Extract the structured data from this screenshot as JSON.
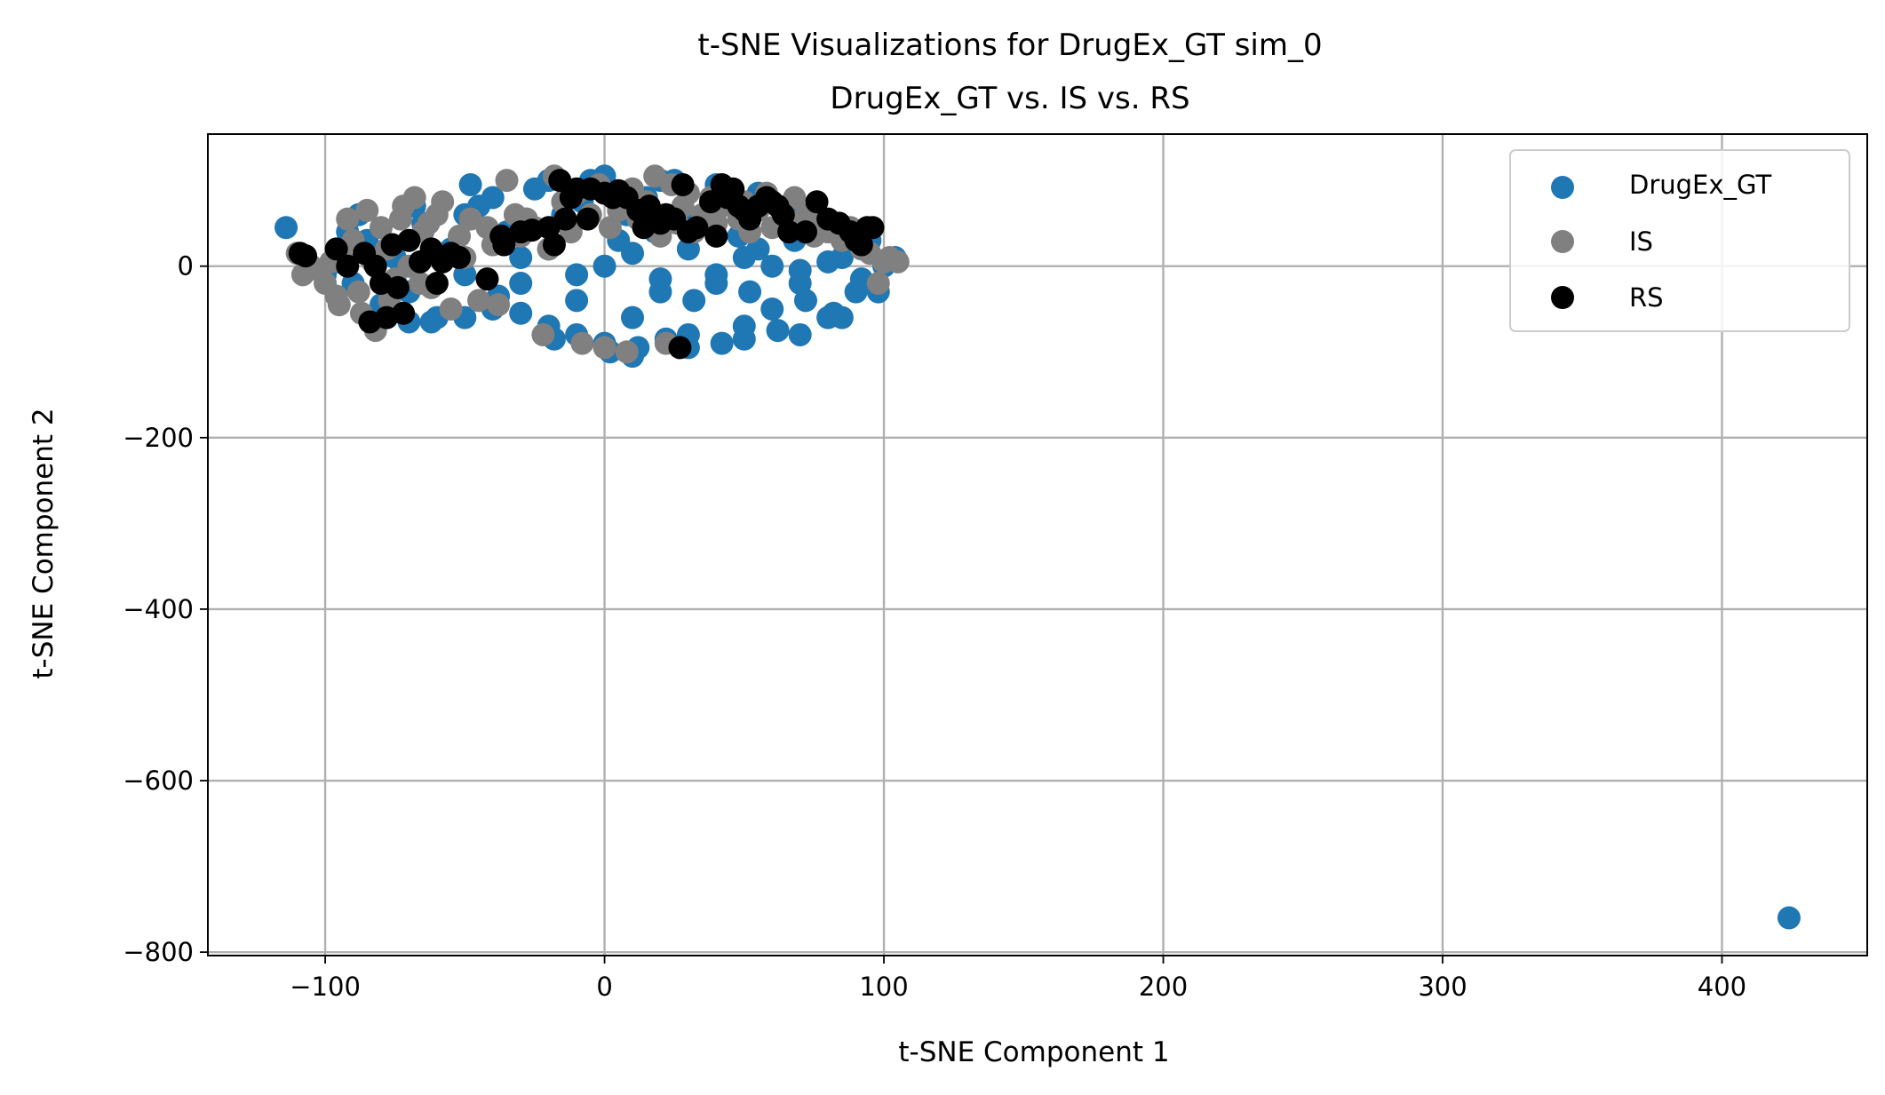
{
  "chart_data": {
    "type": "scatter",
    "title": "t-SNE Visualizations for DrugEx_GT sim_0",
    "subtitle": "DrugEx_GT vs. IS vs. RS",
    "xlabel": "t-SNE Component 1",
    "ylabel": "t-SNE Component 2",
    "xlim": [
      -142,
      452
    ],
    "ylim": [
      -804,
      154
    ],
    "xticks": [
      -100,
      0,
      100,
      200,
      300,
      400
    ],
    "xtick_labels": [
      "−100",
      "0",
      "100",
      "200",
      "300",
      "400"
    ],
    "yticks": [
      0,
      -200,
      -400,
      -600,
      -800
    ],
    "ytick_labels": [
      "0",
      "−200",
      "−400",
      "−600",
      "−800"
    ],
    "grid": true,
    "legend_position": "top-right",
    "series": [
      {
        "name": "DrugEx_GT",
        "color": "#1f77b4",
        "points": [
          [
            -114,
            45
          ],
          [
            424,
            -760
          ],
          [
            -95,
            5
          ],
          [
            -90,
            -20
          ],
          [
            -85,
            30
          ],
          [
            -80,
            -45
          ],
          [
            -75,
            10
          ],
          [
            -70,
            -30
          ],
          [
            -65,
            50
          ],
          [
            -60,
            -60
          ],
          [
            -55,
            20
          ],
          [
            -50,
            -10
          ],
          [
            -45,
            70
          ],
          [
            -40,
            -50
          ],
          [
            -35,
            40
          ],
          [
            -30,
            -20
          ],
          [
            -25,
            90
          ],
          [
            -20,
            -70
          ],
          [
            -15,
            60
          ],
          [
            -10,
            -40
          ],
          [
            -5,
            100
          ],
          [
            0,
            -90
          ],
          [
            5,
            30
          ],
          [
            10,
            -60
          ],
          [
            15,
            80
          ],
          [
            20,
            -30
          ],
          [
            25,
            100
          ],
          [
            30,
            -80
          ],
          [
            35,
            50
          ],
          [
            40,
            -10
          ],
          [
            45,
            90
          ],
          [
            50,
            -70
          ],
          [
            55,
            20
          ],
          [
            60,
            -50
          ],
          [
            65,
            70
          ],
          [
            70,
            -20
          ],
          [
            75,
            40
          ],
          [
            80,
            -60
          ],
          [
            85,
            10
          ],
          [
            90,
            -30
          ],
          [
            95,
            30
          ],
          [
            98,
            -30
          ],
          [
            100,
            0
          ],
          [
            104,
            10
          ],
          [
            -100,
            -10
          ],
          [
            -92,
            40
          ],
          [
            -88,
            60
          ],
          [
            -78,
            -60
          ],
          [
            -68,
            70
          ],
          [
            -62,
            -65
          ],
          [
            -48,
            95
          ],
          [
            -38,
            -35
          ],
          [
            -28,
            55
          ],
          [
            -18,
            -85
          ],
          [
            -8,
            75
          ],
          [
            2,
            -100
          ],
          [
            8,
            60
          ],
          [
            12,
            -95
          ],
          [
            18,
            40
          ],
          [
            22,
            -85
          ],
          [
            28,
            60
          ],
          [
            32,
            -40
          ],
          [
            38,
            75
          ],
          [
            42,
            -90
          ],
          [
            48,
            35
          ],
          [
            52,
            -30
          ],
          [
            58,
            80
          ],
          [
            62,
            -75
          ],
          [
            68,
            30
          ],
          [
            72,
            -40
          ],
          [
            78,
            55
          ],
          [
            82,
            -55
          ],
          [
            88,
            25
          ],
          [
            92,
            -15
          ],
          [
            -30,
            10
          ],
          [
            -20,
            20
          ],
          [
            -10,
            -10
          ],
          [
            0,
            0
          ],
          [
            10,
            15
          ],
          [
            20,
            -15
          ],
          [
            30,
            20
          ],
          [
            40,
            -20
          ],
          [
            50,
            10
          ],
          [
            60,
            0
          ],
          [
            70,
            -5
          ],
          [
            80,
            5
          ],
          [
            -50,
            60
          ],
          [
            -40,
            80
          ],
          [
            -20,
            100
          ],
          [
            0,
            105
          ],
          [
            20,
            100
          ],
          [
            40,
            95
          ],
          [
            55,
            85
          ],
          [
            -70,
            -65
          ],
          [
            -50,
            -60
          ],
          [
            -30,
            -55
          ],
          [
            -10,
            -80
          ],
          [
            10,
            -105
          ],
          [
            30,
            -95
          ],
          [
            50,
            -85
          ],
          [
            70,
            -80
          ],
          [
            85,
            -60
          ]
        ]
      },
      {
        "name": "IS",
        "color": "#808080",
        "points": [
          [
            -110,
            15
          ],
          [
            -108,
            -10
          ],
          [
            -100,
            -20
          ],
          [
            -98,
            5
          ],
          [
            -95,
            -45
          ],
          [
            -92,
            55
          ],
          [
            -90,
            30
          ],
          [
            -88,
            -30
          ],
          [
            -85,
            65
          ],
          [
            -82,
            -75
          ],
          [
            -80,
            45
          ],
          [
            -78,
            20
          ],
          [
            -75,
            -15
          ],
          [
            -72,
            70
          ],
          [
            -70,
            0
          ],
          [
            -68,
            80
          ],
          [
            -65,
            40
          ],
          [
            -62,
            -25
          ],
          [
            -60,
            60
          ],
          [
            -58,
            75
          ],
          [
            -55,
            -50
          ],
          [
            -52,
            35
          ],
          [
            -50,
            10
          ],
          [
            -48,
            55
          ],
          [
            -45,
            -40
          ],
          [
            -42,
            45
          ],
          [
            -40,
            25
          ],
          [
            -38,
            -45
          ],
          [
            -35,
            100
          ],
          [
            -32,
            60
          ],
          [
            -30,
            35
          ],
          [
            -28,
            55
          ],
          [
            -25,
            45
          ],
          [
            -22,
            -80
          ],
          [
            -20,
            20
          ],
          [
            -18,
            105
          ],
          [
            -15,
            75
          ],
          [
            -12,
            40
          ],
          [
            -10,
            85
          ],
          [
            -8,
            -90
          ],
          [
            -5,
            60
          ],
          [
            -2,
            95
          ],
          [
            0,
            -95
          ],
          [
            2,
            45
          ],
          [
            5,
            65
          ],
          [
            8,
            -100
          ],
          [
            10,
            90
          ],
          [
            12,
            55
          ],
          [
            15,
            75
          ],
          [
            18,
            105
          ],
          [
            20,
            35
          ],
          [
            22,
            -90
          ],
          [
            24,
            95
          ],
          [
            26,
            50
          ],
          [
            28,
            70
          ],
          [
            30,
            85
          ],
          [
            32,
            40
          ],
          [
            35,
            60
          ],
          [
            38,
            80
          ],
          [
            40,
            50
          ],
          [
            42,
            70
          ],
          [
            45,
            90
          ],
          [
            48,
            55
          ],
          [
            50,
            75
          ],
          [
            52,
            40
          ],
          [
            55,
            65
          ],
          [
            58,
            85
          ],
          [
            60,
            45
          ],
          [
            62,
            70
          ],
          [
            65,
            55
          ],
          [
            68,
            80
          ],
          [
            70,
            45
          ],
          [
            72,
            60
          ],
          [
            75,
            35
          ],
          [
            78,
            55
          ],
          [
            80,
            40
          ],
          [
            82,
            50
          ],
          [
            85,
            30
          ],
          [
            88,
            45
          ],
          [
            90,
            35
          ],
          [
            92,
            20
          ],
          [
            95,
            15
          ],
          [
            98,
            -20
          ],
          [
            100,
            5
          ],
          [
            102,
            10
          ],
          [
            105,
            5
          ],
          [
            -105,
            0
          ],
          [
            -102,
            -5
          ],
          [
            -96,
            -35
          ],
          [
            -94,
            10
          ],
          [
            -87,
            -55
          ],
          [
            -83,
            5
          ],
          [
            -77,
            -40
          ],
          [
            -73,
            55
          ],
          [
            -66,
            -20
          ],
          [
            -63,
            50
          ]
        ]
      },
      {
        "name": "RS",
        "color": "#000000",
        "points": [
          [
            -109,
            15
          ],
          [
            -107,
            12
          ],
          [
            -96,
            20
          ],
          [
            -92,
            0
          ],
          [
            -86,
            15
          ],
          [
            -84,
            -65
          ],
          [
            -82,
            0
          ],
          [
            -80,
            -20
          ],
          [
            -78,
            -60
          ],
          [
            -76,
            25
          ],
          [
            -74,
            -25
          ],
          [
            -72,
            -55
          ],
          [
            -70,
            30
          ],
          [
            -66,
            5
          ],
          [
            -62,
            20
          ],
          [
            -60,
            -20
          ],
          [
            -58,
            5
          ],
          [
            -55,
            15
          ],
          [
            -52,
            10
          ],
          [
            -42,
            -15
          ],
          [
            -37,
            35
          ],
          [
            -36,
            25
          ],
          [
            -30,
            40
          ],
          [
            -26,
            42
          ],
          [
            -20,
            45
          ],
          [
            -18,
            25
          ],
          [
            -16,
            100
          ],
          [
            -14,
            55
          ],
          [
            -12,
            80
          ],
          [
            -10,
            90
          ],
          [
            -6,
            55
          ],
          [
            0,
            85
          ],
          [
            3,
            80
          ],
          [
            5,
            88
          ],
          [
            8,
            80
          ],
          [
            12,
            65
          ],
          [
            14,
            45
          ],
          [
            16,
            70
          ],
          [
            18,
            55
          ],
          [
            20,
            50
          ],
          [
            22,
            60
          ],
          [
            25,
            55
          ],
          [
            28,
            95
          ],
          [
            30,
            40
          ],
          [
            33,
            45
          ],
          [
            38,
            75
          ],
          [
            42,
            95
          ],
          [
            44,
            80
          ],
          [
            46,
            90
          ],
          [
            48,
            70
          ],
          [
            50,
            65
          ],
          [
            52,
            55
          ],
          [
            55,
            70
          ],
          [
            58,
            80
          ],
          [
            60,
            75
          ],
          [
            62,
            70
          ],
          [
            64,
            60
          ],
          [
            66,
            40
          ],
          [
            72,
            40
          ],
          [
            76,
            75
          ],
          [
            80,
            55
          ],
          [
            84,
            50
          ],
          [
            88,
            40
          ],
          [
            90,
            30
          ],
          [
            92,
            25
          ],
          [
            94,
            45
          ],
          [
            96,
            45
          ],
          [
            27,
            -95
          ],
          [
            -5,
            90
          ],
          [
            40,
            35
          ]
        ]
      }
    ]
  }
}
